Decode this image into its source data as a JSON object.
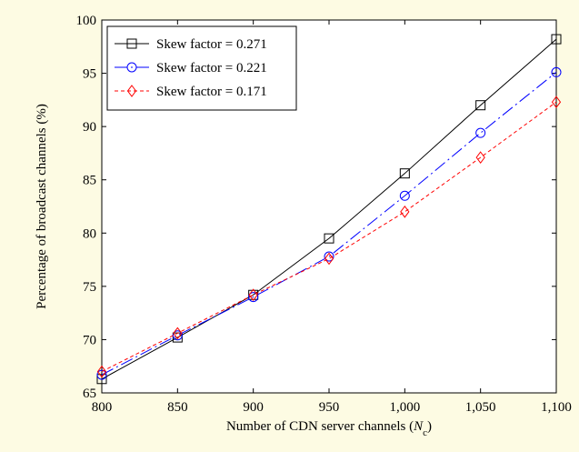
{
  "chart_data": {
    "type": "line",
    "title": "",
    "xlabel_main": "Number of CDN server channels (",
    "xlabel_var": "N",
    "xlabel_sub": "c",
    "xlabel_close": ")",
    "ylabel": "Percentage of broadcast channels (%)",
    "x": [
      800,
      850,
      900,
      950,
      1000,
      1050,
      1100
    ],
    "x_tick_labels": [
      "800",
      "850",
      "900",
      "950",
      "1,000",
      "1,050",
      "1,100"
    ],
    "xlim": [
      800,
      1100
    ],
    "y_ticks": [
      65,
      70,
      75,
      80,
      85,
      90,
      95,
      100
    ],
    "y_tick_labels": [
      "65",
      "70",
      "75",
      "80",
      "85",
      "90",
      "95",
      "100"
    ],
    "ylim": [
      65,
      100
    ],
    "grid": false,
    "legend_position": "top-left",
    "series": [
      {
        "name": "Skew factor = 0.271",
        "values": [
          66.3,
          70.2,
          74.2,
          79.5,
          85.6,
          92.0,
          98.2
        ],
        "color": "#000000",
        "marker": "square",
        "dash": "solid"
      },
      {
        "name": "Skew factor = 0.221",
        "values": [
          66.7,
          70.4,
          74.0,
          77.8,
          83.5,
          89.4,
          95.1
        ],
        "color": "#0000ff",
        "marker": "circle",
        "dash": "dashdot"
      },
      {
        "name": "Skew factor = 0.171",
        "values": [
          67.0,
          70.6,
          74.2,
          77.6,
          82.0,
          87.1,
          92.3
        ],
        "color": "#ff0000",
        "marker": "diamond",
        "dash": "dotted"
      }
    ]
  }
}
